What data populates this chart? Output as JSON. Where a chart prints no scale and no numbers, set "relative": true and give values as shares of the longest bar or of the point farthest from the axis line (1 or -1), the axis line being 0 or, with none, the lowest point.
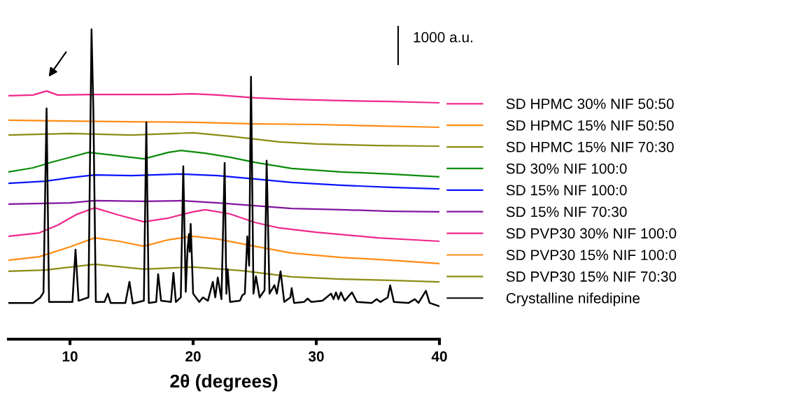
{
  "chart_data": {
    "type": "line",
    "xlabel": "2θ (degrees)",
    "xlim": [
      5,
      40
    ],
    "xticks": [
      10,
      20,
      30,
      40
    ],
    "relative": true,
    "legend": "right",
    "grid": false,
    "marker": "none",
    "line_style": "solid",
    "annotations": [
      "1000 a.u."
    ],
    "series": [
      {
        "name": "SD HPMC 30% NIF 50:50",
        "color": "#f0288c",
        "x": [
          5,
          7,
          8.1,
          9,
          12,
          15,
          18,
          20,
          22,
          25,
          28,
          32,
          36,
          40
        ],
        "values": [
          0.786,
          0.788,
          0.801,
          0.788,
          0.79,
          0.79,
          0.79,
          0.792,
          0.788,
          0.779,
          0.774,
          0.77,
          0.767,
          0.763
        ]
      },
      {
        "name": "SD HPMC 15% NIF 50:50",
        "color": "#ff8c14",
        "x": [
          5,
          10,
          15,
          20,
          25,
          30,
          35,
          40
        ],
        "values": [
          0.707,
          0.704,
          0.702,
          0.7,
          0.695,
          0.693,
          0.688,
          0.684
        ]
      },
      {
        "name": "SD HPMC 15% NIF 70:30",
        "color": "#8c8c14",
        "x": [
          5,
          10,
          15,
          20,
          23,
          27,
          30,
          35,
          40
        ],
        "values": [
          0.659,
          0.664,
          0.659,
          0.666,
          0.655,
          0.637,
          0.63,
          0.625,
          0.623
        ]
      },
      {
        "name": "SD 30% NIF 100:0",
        "color": "#0a8c0a",
        "x": [
          5,
          7,
          8.5,
          10,
          11.5,
          13,
          16,
          18,
          19,
          21,
          23,
          25,
          28,
          32,
          36,
          40
        ],
        "values": [
          0.54,
          0.553,
          0.571,
          0.587,
          0.603,
          0.596,
          0.582,
          0.603,
          0.609,
          0.6,
          0.587,
          0.571,
          0.551,
          0.54,
          0.533,
          0.524
        ]
      },
      {
        "name": "SD 15% NIF 100:0",
        "color": "#0a14ff",
        "x": [
          5,
          8,
          10,
          12,
          15,
          19,
          22,
          25,
          28,
          32,
          36,
          40
        ],
        "values": [
          0.503,
          0.51,
          0.521,
          0.53,
          0.528,
          0.533,
          0.528,
          0.517,
          0.506,
          0.497,
          0.49,
          0.485
        ]
      },
      {
        "name": "SD 15% NIF 70:30",
        "color": "#8214a0",
        "x": [
          5,
          10,
          12,
          16,
          19,
          22,
          25,
          28,
          32,
          36,
          40
        ],
        "values": [
          0.436,
          0.44,
          0.447,
          0.445,
          0.447,
          0.44,
          0.431,
          0.422,
          0.418,
          0.413,
          0.411
        ]
      },
      {
        "name": "SD PVP30 30% NIF 100:0",
        "color": "#f0288c",
        "x": [
          5,
          7.5,
          9,
          10.5,
          12,
          14,
          16,
          18,
          20,
          21,
          23,
          25,
          27,
          30,
          35,
          40
        ],
        "values": [
          0.332,
          0.343,
          0.368,
          0.402,
          0.424,
          0.4,
          0.379,
          0.391,
          0.411,
          0.418,
          0.404,
          0.377,
          0.359,
          0.345,
          0.327,
          0.316
        ]
      },
      {
        "name": "SD PVP30 15% NIF 100:0",
        "color": "#ff8c14",
        "x": [
          5,
          7.5,
          10,
          12,
          14,
          16,
          18,
          20,
          22,
          25,
          28,
          32,
          36,
          40
        ],
        "values": [
          0.255,
          0.266,
          0.298,
          0.327,
          0.316,
          0.3,
          0.321,
          0.332,
          0.323,
          0.3,
          0.278,
          0.264,
          0.255,
          0.244
        ]
      },
      {
        "name": "SD PVP30 15% NIF 70:30",
        "color": "#8c8c14",
        "x": [
          5,
          8,
          12,
          16,
          20,
          24,
          28,
          32,
          36,
          40
        ],
        "values": [
          0.219,
          0.223,
          0.242,
          0.226,
          0.233,
          0.221,
          0.201,
          0.194,
          0.19,
          0.185
        ]
      },
      {
        "name": "Crystalline nifedipine",
        "color": "#000000",
        "x": [
          5,
          7.0,
          7.6,
          7.85,
          8.1,
          8.3,
          10.2,
          10.45,
          10.7,
          11.5,
          11.75,
          11.9,
          12.1,
          12.8,
          13.07,
          13.3,
          14.5,
          14.83,
          15.1,
          16.0,
          16.2,
          16.4,
          17.0,
          17.16,
          17.4,
          18.2,
          18.4,
          18.6,
          19.0,
          19.2,
          19.4,
          19.55,
          19.66,
          19.72,
          19.8,
          20.0,
          20.5,
          20.8,
          21.2,
          21.6,
          21.8,
          22.0,
          22.3,
          22.56,
          22.7,
          22.8,
          23.0,
          23.8,
          24.0,
          24.2,
          24.4,
          24.55,
          24.7,
          24.9,
          25.1,
          25.4,
          25.8,
          25.97,
          26.2,
          26.6,
          26.8,
          27.1,
          27.4,
          27.9,
          28.0,
          28.2,
          29.0,
          29.3,
          29.6,
          30.5,
          31.2,
          31.4,
          31.6,
          31.8,
          32.0,
          32.3,
          32.9,
          33.3,
          34.5,
          34.9,
          35.2,
          35.8,
          36.0,
          36.3,
          37.5,
          38.0,
          38.3,
          38.9,
          39.2,
          40.0
        ],
        "values": [
          0.117,
          0.117,
          0.135,
          0.151,
          0.745,
          0.12,
          0.12,
          0.289,
          0.124,
          0.135,
          1.0,
          0.738,
          0.12,
          0.12,
          0.147,
          0.117,
          0.117,
          0.185,
          0.115,
          0.124,
          0.7,
          0.117,
          0.12,
          0.21,
          0.124,
          0.12,
          0.214,
          0.12,
          0.135,
          0.558,
          0.153,
          0.293,
          0.339,
          0.282,
          0.372,
          0.147,
          0.12,
          0.135,
          0.124,
          0.185,
          0.135,
          0.199,
          0.129,
          0.569,
          0.147,
          0.226,
          0.12,
          0.124,
          0.142,
          0.147,
          0.332,
          0.237,
          0.847,
          0.147,
          0.203,
          0.135,
          0.158,
          0.576,
          0.147,
          0.174,
          0.147,
          0.219,
          0.12,
          0.135,
          0.165,
          0.117,
          0.12,
          0.131,
          0.12,
          0.124,
          0.147,
          0.129,
          0.151,
          0.129,
          0.151,
          0.124,
          0.151,
          0.12,
          0.117,
          0.129,
          0.12,
          0.135,
          0.174,
          0.12,
          0.117,
          0.129,
          0.117,
          0.156,
          0.117,
          0.106
        ]
      }
    ]
  }
}
